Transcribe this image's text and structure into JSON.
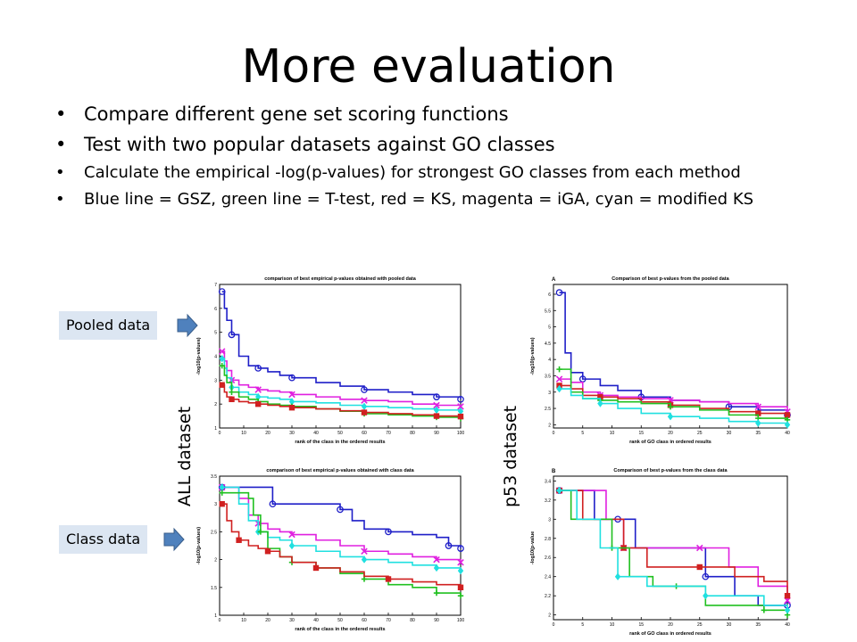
{
  "slide": {
    "title": "More evaluation",
    "bullets": [
      "Compare different gene set scoring functions",
      "Test with two popular datasets against GO classes",
      "Calculate the empirical -log(p-values) for strongest GO classes from each method",
      "Blue line = GSZ, green line = T-test, red = KS, magenta = iGA, cyan = modified KS"
    ],
    "callouts": {
      "pooled": "Pooled data",
      "class": "Class data"
    },
    "dataset_labels": {
      "all": "ALL dataset",
      "p53": "p53 dataset"
    },
    "colors": {
      "callout_bg": "#dce6f2",
      "arrow": "#4f81bd"
    }
  },
  "chart_data": [
    {
      "id": "all-pooled",
      "type": "line",
      "title": "comparison of best empirical p-values obtained with pooled data",
      "panel_letter": "",
      "xlabel": "rank of the class in the ordered results",
      "ylabel": "-log10(p-values)",
      "xlim": [
        0,
        100
      ],
      "ylim": [
        1,
        7
      ],
      "xticks": [
        0,
        10,
        20,
        30,
        40,
        50,
        60,
        70,
        80,
        90,
        100
      ],
      "yticks": [
        1,
        2,
        3,
        4,
        5,
        6,
        7
      ],
      "series": [
        {
          "color": "#1f1fc8",
          "marker": "circle",
          "x": [
            1,
            2,
            3,
            5,
            8,
            12,
            16,
            20,
            25,
            30,
            40,
            50,
            60,
            70,
            80,
            90,
            100
          ],
          "y": [
            6.7,
            6.0,
            5.5,
            4.9,
            4.0,
            3.6,
            3.5,
            3.35,
            3.2,
            3.1,
            2.9,
            2.75,
            2.6,
            2.5,
            2.4,
            2.3,
            2.2
          ]
        },
        {
          "color": "#e020e0",
          "marker": "x",
          "x": [
            1,
            2,
            3,
            5,
            8,
            12,
            16,
            20,
            25,
            30,
            40,
            50,
            60,
            70,
            80,
            90,
            100
          ],
          "y": [
            4.2,
            3.8,
            3.4,
            3.0,
            2.8,
            2.7,
            2.6,
            2.55,
            2.5,
            2.4,
            2.3,
            2.2,
            2.15,
            2.1,
            2.0,
            1.95,
            1.9
          ]
        },
        {
          "color": "#20e0e0",
          "marker": "diamond",
          "x": [
            1,
            2,
            3,
            5,
            8,
            12,
            16,
            20,
            25,
            30,
            40,
            50,
            60,
            70,
            80,
            90,
            100
          ],
          "y": [
            3.9,
            3.5,
            3.1,
            2.7,
            2.5,
            2.4,
            2.3,
            2.25,
            2.2,
            2.1,
            2.05,
            1.95,
            1.9,
            1.85,
            1.8,
            1.75,
            1.7
          ]
        },
        {
          "color": "#20c020",
          "marker": "plus",
          "x": [
            1,
            2,
            3,
            5,
            8,
            12,
            16,
            20,
            25,
            30,
            40,
            50,
            60,
            70,
            80,
            90,
            100
          ],
          "y": [
            3.6,
            3.2,
            2.9,
            2.5,
            2.3,
            2.2,
            2.1,
            2.0,
            1.95,
            1.9,
            1.8,
            1.7,
            1.6,
            1.55,
            1.5,
            1.45,
            1.4
          ]
        },
        {
          "color": "#d02020",
          "marker": "square",
          "x": [
            1,
            2,
            3,
            5,
            8,
            12,
            16,
            20,
            25,
            30,
            40,
            50,
            60,
            70,
            80,
            90,
            100
          ],
          "y": [
            2.8,
            2.5,
            2.3,
            2.2,
            2.1,
            2.05,
            2.0,
            1.95,
            1.9,
            1.85,
            1.8,
            1.72,
            1.65,
            1.6,
            1.55,
            1.5,
            1.48
          ]
        }
      ]
    },
    {
      "id": "all-class",
      "type": "line",
      "title": "comparison of best empirical p-values obtained with class data",
      "panel_letter": "",
      "xlabel": "rank of the class in the ordered results",
      "ylabel": "-log10(p-values)",
      "xlim": [
        0,
        100
      ],
      "ylim": [
        1,
        3.5
      ],
      "xticks": [
        0,
        10,
        20,
        30,
        40,
        50,
        60,
        70,
        80,
        90,
        100
      ],
      "yticks": [
        1,
        1.5,
        2,
        2.5,
        3,
        3.5
      ],
      "series": [
        {
          "color": "#1f1fc8",
          "marker": "circle",
          "x": [
            1,
            10,
            20,
            22,
            30,
            40,
            50,
            55,
            60,
            70,
            80,
            90,
            95,
            100
          ],
          "y": [
            3.3,
            3.3,
            3.3,
            3.0,
            3.0,
            3.0,
            2.9,
            2.7,
            2.55,
            2.5,
            2.45,
            2.4,
            2.25,
            2.2
          ]
        },
        {
          "color": "#e020e0",
          "marker": "x",
          "x": [
            1,
            8,
            12,
            16,
            20,
            25,
            30,
            40,
            50,
            60,
            70,
            80,
            90,
            100
          ],
          "y": [
            3.3,
            3.1,
            2.8,
            2.65,
            2.55,
            2.5,
            2.45,
            2.35,
            2.25,
            2.15,
            2.1,
            2.05,
            2.0,
            1.95
          ]
        },
        {
          "color": "#20e0e0",
          "marker": "diamond",
          "x": [
            1,
            8,
            12,
            16,
            20,
            25,
            30,
            40,
            50,
            60,
            70,
            80,
            90,
            100
          ],
          "y": [
            3.3,
            3.0,
            2.7,
            2.5,
            2.4,
            2.35,
            2.25,
            2.15,
            2.05,
            2.0,
            1.95,
            1.9,
            1.85,
            1.8
          ]
        },
        {
          "color": "#20c020",
          "marker": "plus",
          "x": [
            1,
            12,
            14,
            17,
            20,
            25,
            30,
            40,
            50,
            60,
            70,
            80,
            90,
            100
          ],
          "y": [
            3.2,
            3.1,
            2.8,
            2.5,
            2.2,
            2.05,
            1.95,
            1.85,
            1.75,
            1.65,
            1.55,
            1.5,
            1.4,
            1.35
          ]
        },
        {
          "color": "#d02020",
          "marker": "square",
          "x": [
            1,
            3,
            5,
            8,
            12,
            16,
            20,
            25,
            30,
            40,
            50,
            60,
            70,
            80,
            90,
            100
          ],
          "y": [
            3.0,
            2.7,
            2.5,
            2.35,
            2.25,
            2.2,
            2.15,
            2.05,
            1.95,
            1.85,
            1.78,
            1.7,
            1.65,
            1.6,
            1.55,
            1.5
          ]
        }
      ]
    },
    {
      "id": "p53-pooled",
      "type": "line",
      "title": "Comparison of best p-values from the pooled data",
      "panel_letter": "A",
      "xlabel": "rank of GO class in ordered results",
      "ylabel": "-log10(p-values)",
      "xlim": [
        0,
        40
      ],
      "ylim": [
        1.9,
        6.3
      ],
      "xticks": [
        0,
        5,
        10,
        15,
        20,
        25,
        30,
        35,
        40
      ],
      "ytick_labels": [
        "2",
        "2.5",
        "3",
        "3.5",
        "4",
        "4.5",
        "5",
        "5.5",
        "6"
      ],
      "series": [
        {
          "color": "#1f1fc8",
          "marker": "circle",
          "x": [
            1,
            2,
            3,
            5,
            8,
            11,
            15,
            20,
            25,
            30,
            35,
            40
          ],
          "y": [
            6.05,
            4.2,
            3.6,
            3.4,
            3.2,
            3.05,
            2.85,
            2.75,
            2.7,
            2.55,
            2.45,
            2.3
          ]
        },
        {
          "color": "#e020e0",
          "marker": "x",
          "x": [
            1,
            3,
            5,
            8,
            11,
            15,
            20,
            25,
            30,
            35,
            40
          ],
          "y": [
            3.4,
            3.3,
            3.0,
            2.9,
            2.85,
            2.8,
            2.75,
            2.7,
            2.65,
            2.55,
            2.4
          ]
        },
        {
          "color": "#d02020",
          "marker": "square",
          "x": [
            1,
            3,
            5,
            8,
            11,
            15,
            20,
            25,
            30,
            35,
            40
          ],
          "y": [
            3.2,
            3.1,
            2.9,
            2.85,
            2.8,
            2.7,
            2.6,
            2.5,
            2.4,
            2.35,
            2.3
          ]
        },
        {
          "color": "#20c020",
          "marker": "plus",
          "x": [
            1,
            3,
            5,
            8,
            11,
            15,
            20,
            25,
            30,
            35,
            40
          ],
          "y": [
            3.7,
            3.0,
            2.8,
            2.75,
            2.7,
            2.65,
            2.55,
            2.45,
            2.3,
            2.2,
            2.15
          ]
        },
        {
          "color": "#20e0e0",
          "marker": "diamond",
          "x": [
            1,
            3,
            5,
            8,
            11,
            15,
            20,
            25,
            30,
            35,
            40
          ],
          "y": [
            3.1,
            2.9,
            2.8,
            2.65,
            2.5,
            2.35,
            2.25,
            2.2,
            2.1,
            2.05,
            2.0
          ]
        }
      ]
    },
    {
      "id": "p53-class",
      "type": "line",
      "title": "Comparison of best p-values from the class data",
      "panel_letter": "B",
      "xlabel": "rank of GO class in ordered results",
      "ylabel": "-log10(p-value",
      "xlim": [
        0,
        40
      ],
      "ylim": [
        1.95,
        3.45
      ],
      "xticks": [
        0,
        5,
        10,
        15,
        20,
        25,
        30,
        35,
        40
      ],
      "ytick_labels": [
        "2",
        "2.2",
        "2.4",
        "2.6",
        "2.8",
        "3",
        "3.2",
        "3.4"
      ],
      "series": [
        {
          "color": "#1f1fc8",
          "marker": "circle",
          "x": [
            1,
            6,
            7,
            11,
            14,
            20,
            26,
            31,
            35,
            40
          ],
          "y": [
            3.3,
            3.3,
            3.0,
            3.0,
            2.7,
            2.7,
            2.4,
            2.2,
            2.1,
            2.1
          ]
        },
        {
          "color": "#e020e0",
          "marker": "x",
          "x": [
            1,
            5,
            9,
            12,
            16,
            21,
            25,
            30,
            35,
            40
          ],
          "y": [
            3.3,
            3.3,
            3.0,
            2.7,
            2.7,
            2.7,
            2.7,
            2.5,
            2.3,
            2.15
          ]
        },
        {
          "color": "#d02020",
          "marker": "square",
          "x": [
            1,
            5,
            9,
            12,
            16,
            21,
            25,
            31,
            36,
            40
          ],
          "y": [
            3.3,
            3.0,
            3.0,
            2.7,
            2.5,
            2.5,
            2.5,
            2.4,
            2.35,
            2.2
          ]
        },
        {
          "color": "#20c020",
          "marker": "plus",
          "x": [
            1,
            3,
            6,
            10,
            13,
            17,
            21,
            26,
            31,
            36,
            40
          ],
          "y": [
            3.3,
            3.0,
            3.0,
            2.7,
            2.4,
            2.3,
            2.3,
            2.1,
            2.1,
            2.05,
            2.0
          ]
        },
        {
          "color": "#20e0e0",
          "marker": "diamond",
          "x": [
            1,
            4,
            8,
            11,
            16,
            21,
            26,
            31,
            36,
            40
          ],
          "y": [
            3.3,
            3.0,
            2.7,
            2.4,
            2.3,
            2.3,
            2.2,
            2.2,
            2.1,
            2.05
          ]
        }
      ]
    }
  ]
}
